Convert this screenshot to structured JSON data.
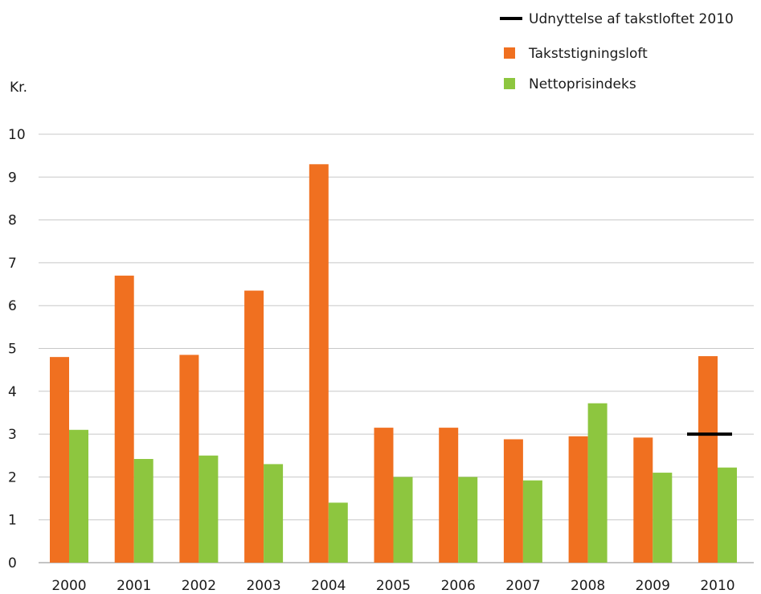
{
  "chart_data": {
    "type": "bar",
    "unit_label": "Kr.",
    "categories": [
      "2000",
      "2001",
      "2002",
      "2003",
      "2004",
      "2005",
      "2006",
      "2007",
      "2008",
      "2009",
      "2010"
    ],
    "series": [
      {
        "name": "Takststigningsloft",
        "color": "#f07020",
        "values": [
          4.8,
          6.7,
          4.85,
          6.35,
          9.3,
          3.15,
          3.15,
          2.88,
          2.95,
          2.92,
          4.82
        ]
      },
      {
        "name": "Nettoprisindeks",
        "color": "#8dc63f",
        "values": [
          3.1,
          2.42,
          2.5,
          2.3,
          1.4,
          2.0,
          2.0,
          1.92,
          3.72,
          2.1,
          2.22
        ]
      }
    ],
    "marker": {
      "name": "Udnyttelse af takstloftet 2010",
      "category": "2010",
      "value": 3.0,
      "color": "#000000"
    },
    "ylim": [
      0,
      10
    ],
    "yticks": [
      0,
      1,
      2,
      3,
      4,
      5,
      6,
      7,
      8,
      9,
      10
    ],
    "grid": true,
    "legend_position": "top-right"
  }
}
